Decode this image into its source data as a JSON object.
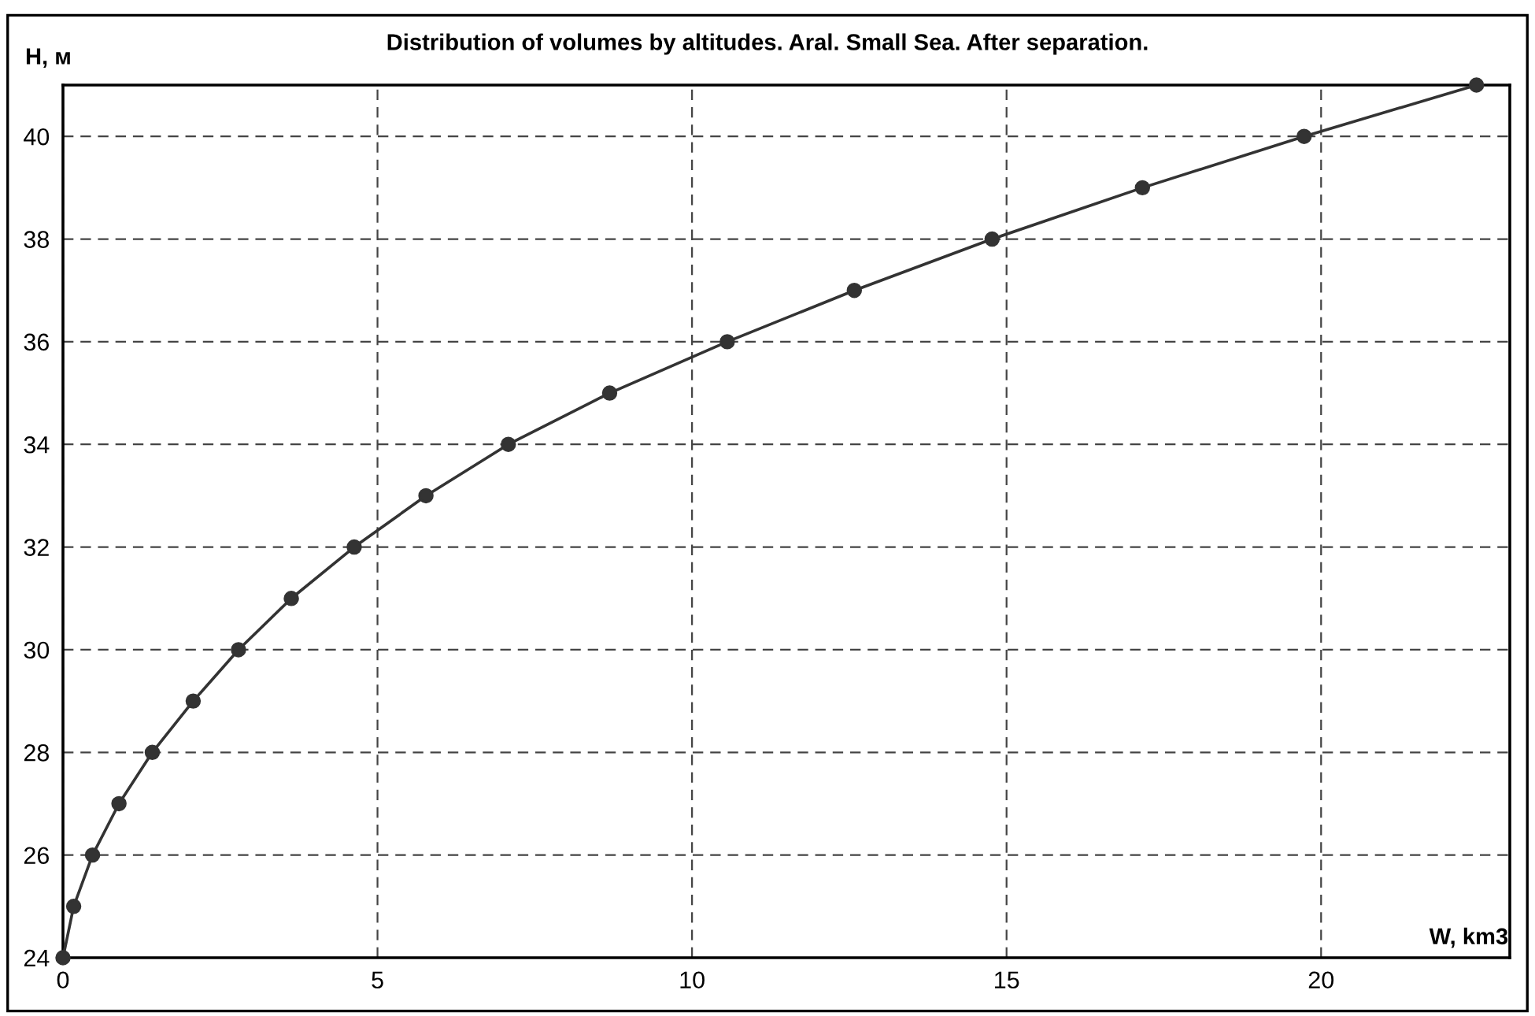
{
  "chart_data": {
    "type": "line",
    "title": "Distribution of volumes by altitudes. Aral. Small Sea. After separation.",
    "xlabel": "W, km3",
    "ylabel": "H, м",
    "x": [
      0,
      0.17,
      0.47,
      0.89,
      1.42,
      2.07,
      2.79,
      3.63,
      4.63,
      5.77,
      7.08,
      8.69,
      10.56,
      12.58,
      14.77,
      17.16,
      19.73,
      22.47
    ],
    "series": [
      {
        "color": "#333333",
        "values": [
          24,
          25,
          26,
          27,
          28,
          29,
          30,
          31,
          32,
          33,
          34,
          35,
          36,
          37,
          38,
          39,
          40,
          41
        ]
      }
    ],
    "xlim": [
      0,
      23
    ],
    "xticks": [
      0,
      5,
      10,
      15,
      20
    ],
    "ylim": [
      24,
      41
    ],
    "yticks": [
      24,
      26,
      28,
      30,
      32,
      34,
      36,
      38,
      40
    ],
    "grid": true,
    "marker": "circle",
    "line_style": "solid"
  }
}
